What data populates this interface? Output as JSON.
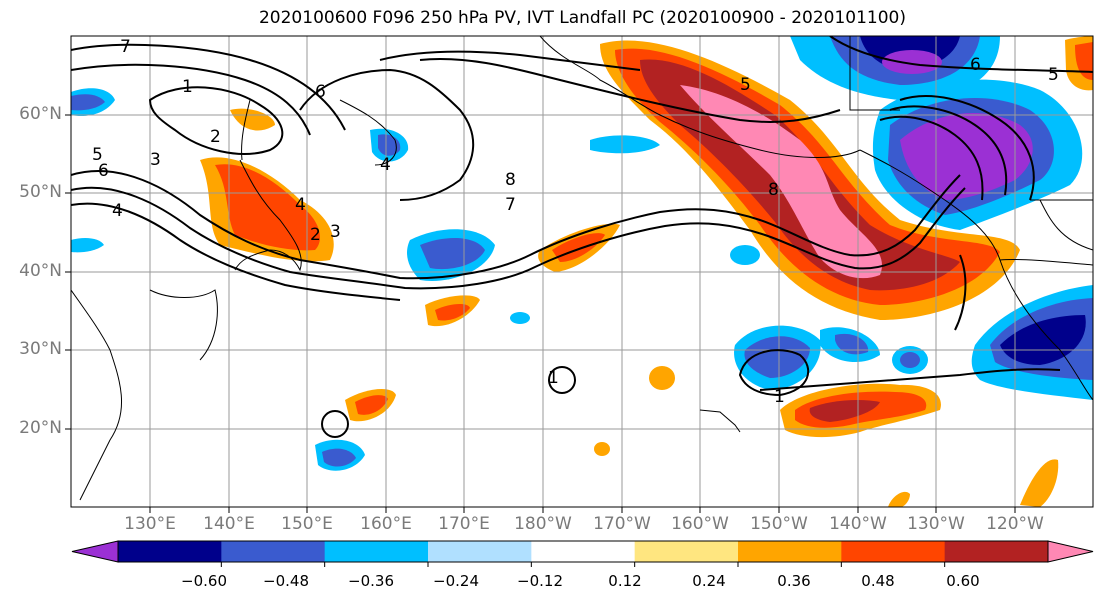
{
  "title": "2020100600 F096 250 hPa PV, IVT Landfall PC (2020100900 - 2020101100)",
  "lat_labels": [
    "60°N",
    "50°N",
    "40°N",
    "30°N",
    "20°N"
  ],
  "lon_labels": [
    "130°E",
    "140°E",
    "150°E",
    "160°E",
    "170°E",
    "180°W",
    "170°W",
    "160°W",
    "150°W",
    "140°W",
    "130°W",
    "120°W"
  ],
  "colorbar": {
    "ticks": [
      "−0.60",
      "−0.48",
      "−0.36",
      "−0.24",
      "−0.12",
      "0.12",
      "0.24",
      "0.36",
      "0.48",
      "0.60"
    ],
    "colors": [
      "#9b30d4",
      "#00008b",
      "#3a5bcf",
      "#00bfff",
      "#b0e0ff",
      "#ffffff",
      "#ffe680",
      "#ffa500",
      "#ff4500",
      "#b22222",
      "#ff88b4"
    ]
  },
  "contour_labels": [
    "1",
    "2",
    "3",
    "4",
    "5",
    "6",
    "7",
    "8",
    "1",
    "2",
    "3",
    "4",
    "5",
    "6",
    "7",
    "8",
    "6",
    "5",
    "4",
    "1"
  ]
}
